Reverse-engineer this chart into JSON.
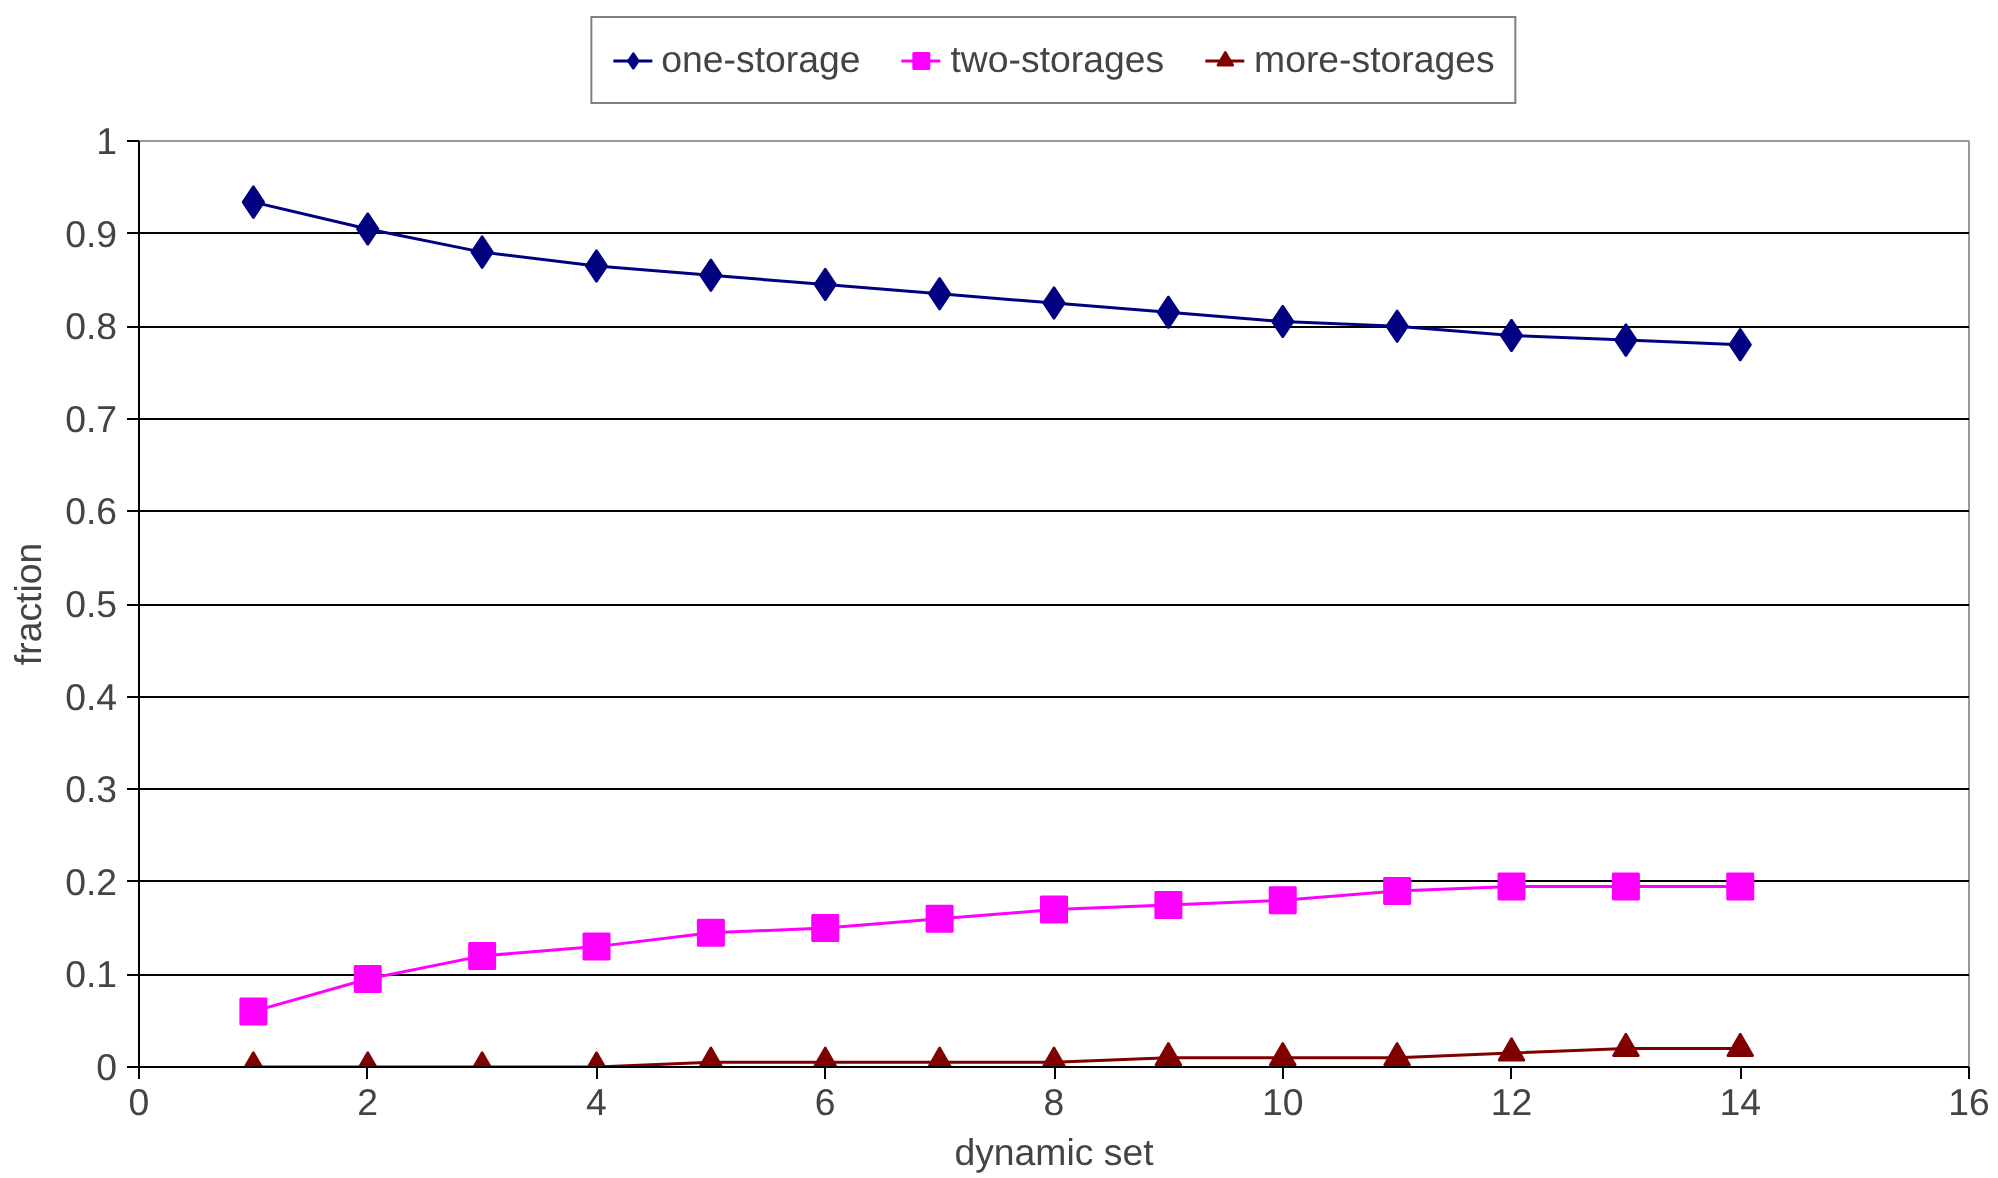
{
  "chart_data": {
    "type": "line",
    "xlabel": "dynamic set",
    "ylabel": "fraction",
    "x": [
      1,
      2,
      3,
      4,
      5,
      6,
      7,
      8,
      9,
      10,
      11,
      12,
      13,
      14
    ],
    "series": [
      {
        "name": "one-storage",
        "color": "#000080",
        "marker": "diamond",
        "values": [
          0.934,
          0.905,
          0.88,
          0.865,
          0.855,
          0.845,
          0.835,
          0.825,
          0.815,
          0.805,
          0.8,
          0.79,
          0.785,
          0.78
        ]
      },
      {
        "name": "two-storages",
        "color": "#ff00ff",
        "marker": "square",
        "values": [
          0.06,
          0.095,
          0.12,
          0.13,
          0.145,
          0.15,
          0.16,
          0.17,
          0.175,
          0.18,
          0.19,
          0.195,
          0.195,
          0.195
        ]
      },
      {
        "name": "more-storages",
        "color": "#800000",
        "marker": "triangle",
        "values": [
          0,
          0,
          0,
          0,
          0.005,
          0.005,
          0.005,
          0.005,
          0.01,
          0.01,
          0.01,
          0.015,
          0.02,
          0.02
        ]
      }
    ],
    "xlim": [
      0,
      16
    ],
    "xticks": [
      0,
      2,
      4,
      6,
      8,
      10,
      12,
      14,
      16
    ],
    "ylim": [
      0,
      1
    ],
    "yticks": [
      0,
      0.1,
      0.2,
      0.3,
      0.4,
      0.5,
      0.6,
      0.7,
      0.8,
      0.9,
      1
    ],
    "grid": "y",
    "legend": "top",
    "line_style": "solid"
  }
}
